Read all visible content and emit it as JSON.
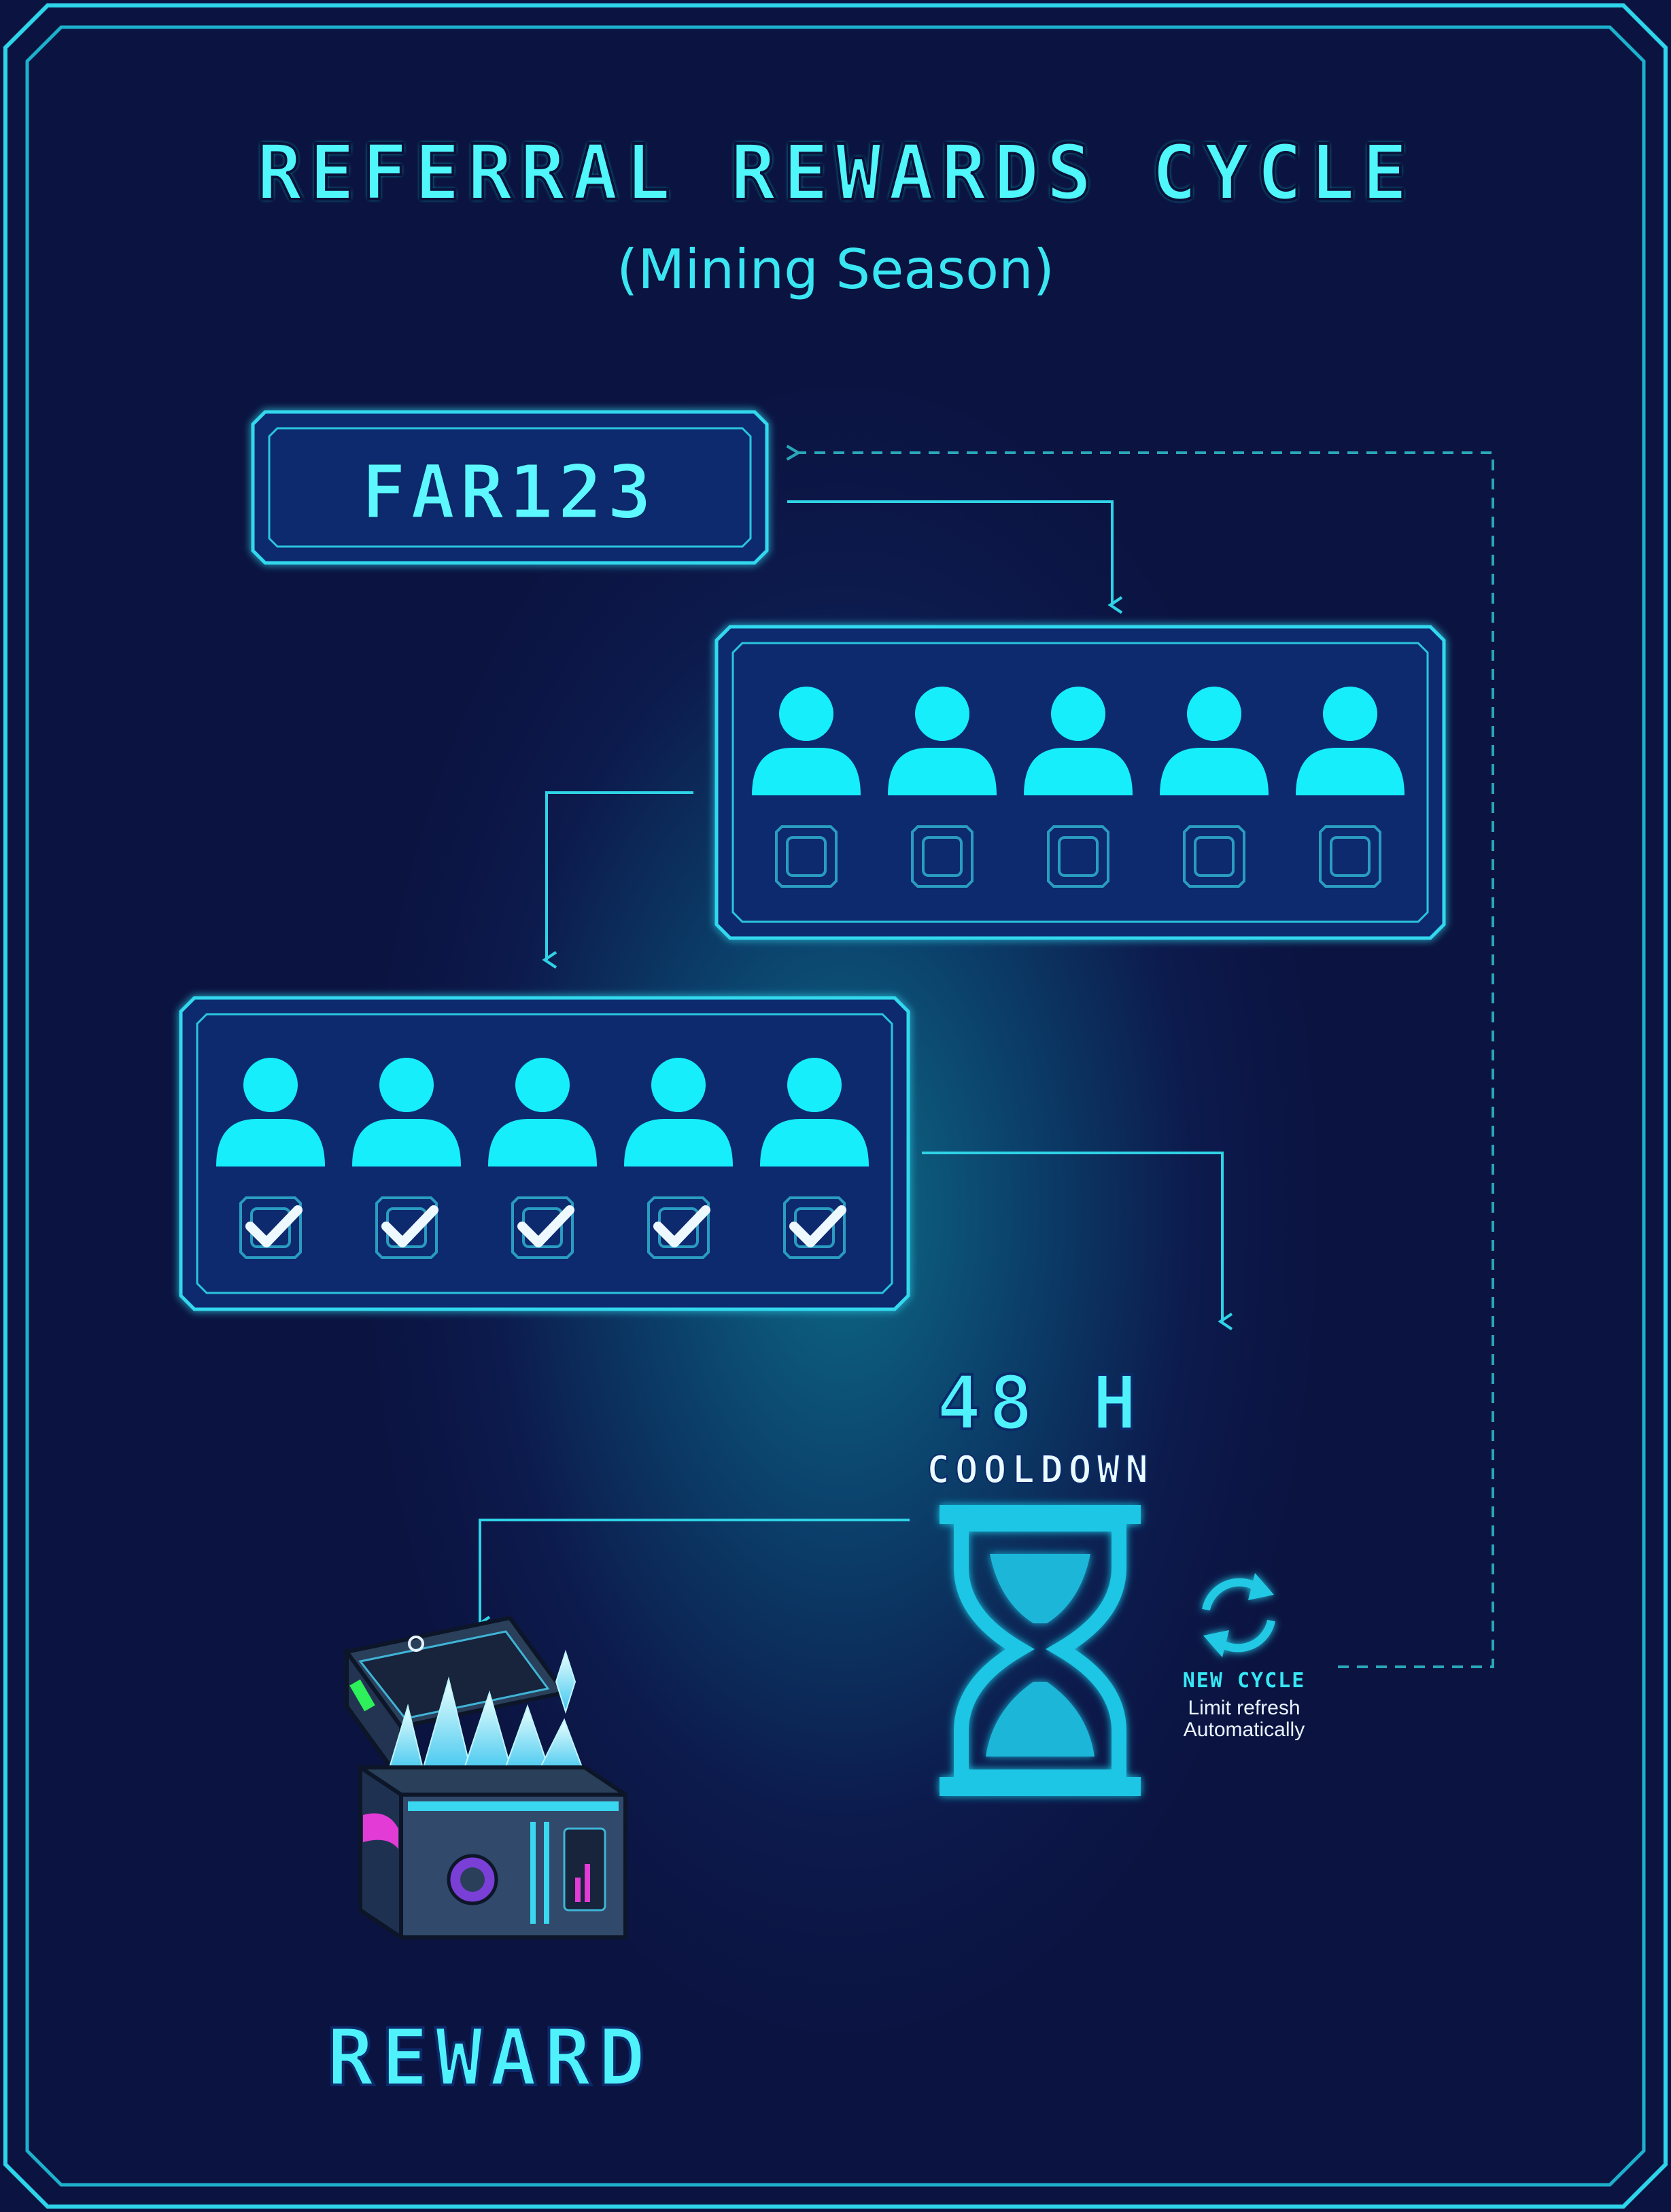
{
  "title": "REFERRAL REWARDS CYCLE",
  "subtitle": "(Mining Season)",
  "referral_code": "FAR123",
  "pending_referrals": {
    "count": 5,
    "checked": false
  },
  "completed_referrals": {
    "count": 5,
    "checked": true
  },
  "cooldown": {
    "hours": "48 H",
    "label": "COOLDOWN"
  },
  "new_cycle": {
    "title": "NEW CYCLE",
    "line1": "Limit refresh",
    "line2": "Automatically"
  },
  "reward": {
    "label": "REWARD"
  },
  "colors": {
    "accent": "#3ef3f8",
    "background": "#0b1340",
    "panel": "#0d2a6e",
    "user_icon": "#16eefc",
    "connector": "#2fd3e6",
    "crystal": "#8feaff",
    "chest": "#2a3f5a",
    "chest_accent_pink": "#e23bd6",
    "chest_accent_green": "#2ef05a"
  },
  "icons": {
    "user": "user-icon",
    "empty_checkbox": "empty-checkbox-icon",
    "checked_checkbox": "checked-checkbox-icon",
    "hourglass": "hourglass-icon",
    "refresh": "refresh-icon",
    "chest": "treasure-chest-icon"
  }
}
